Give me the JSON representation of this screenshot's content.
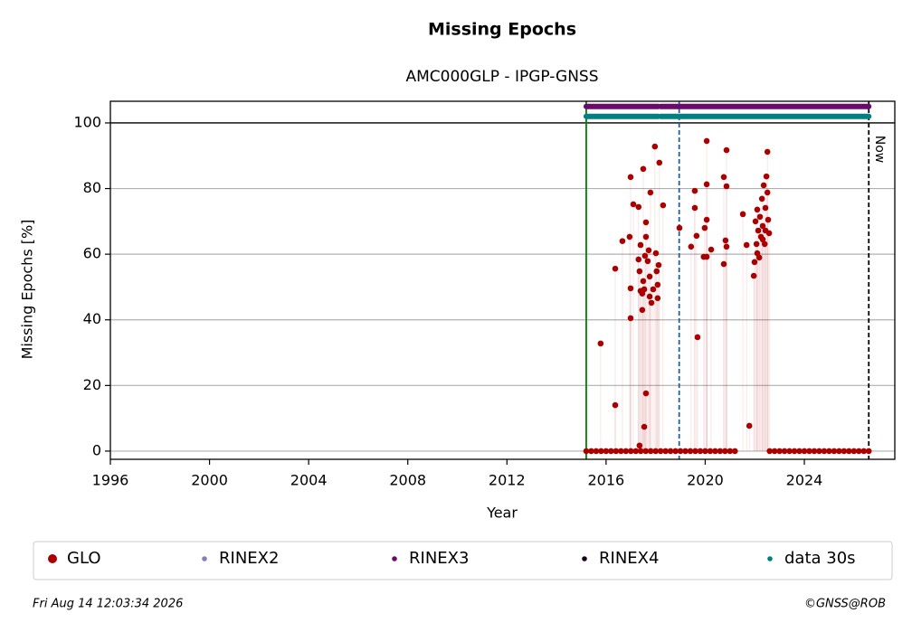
{
  "chart_data": {
    "type": "scatter",
    "title": "Missing Epochs",
    "subtitle": "AMC000GLP - IPGP-GNSS",
    "xlabel": "Year",
    "ylabel": "Missing Epochs [%]",
    "xlim": [
      1996,
      2027.65
    ],
    "ylim": [
      -2.5,
      106.6
    ],
    "xticks": [
      1996,
      2000,
      2004,
      2008,
      2012,
      2016,
      2020,
      2024
    ],
    "yticks": [
      0,
      20,
      40,
      60,
      80,
      100
    ],
    "grid": "y",
    "hline": 100,
    "vlines": [
      {
        "x": 2015.2,
        "color": "#008000",
        "dash": false
      },
      {
        "x": 2018.95,
        "color": "#1f5fa0",
        "dash": true
      },
      {
        "x": 2026.6,
        "color": "#000000",
        "dash": true,
        "label": "Now"
      }
    ],
    "legend": "bottom",
    "series": [
      {
        "name": "GLO",
        "color": "#aa0000",
        "mode": "markers",
        "x": [
          2015.78,
          2016.37,
          2016.37,
          2016.66,
          2016.95,
          2016.99,
          2016.99,
          2016.99,
          2017.1,
          2017.31,
          2017.31,
          2017.35,
          2017.39,
          2017.46,
          2017.46,
          2017.5,
          2017.5,
          2017.54,
          2017.57,
          2017.61,
          2017.61,
          2017.61,
          2017.68,
          2017.72,
          2017.76,
          2017.76,
          2017.79,
          2017.83,
          2017.9,
          2017.97,
          2018.01,
          2018.04,
          2018.08,
          2018.08,
          2018.12,
          2018.15,
          2018.3,
          2017.35,
          2017.54,
          2017.39,
          2018.96,
          2019.43,
          2019.58,
          2019.58,
          2019.65,
          2019.69,
          2019.94,
          2020.06,
          2020.06,
          2020.06,
          2020.06,
          2020.24,
          2019.98,
          2020.75,
          2020.75,
          2020.86,
          2020.86,
          2020.82,
          2020.86,
          2021.52,
          2021.67,
          2021.78,
          2021.96,
          2021.99,
          2022.03,
          2022.07,
          2022.1,
          2022.14,
          2022.18,
          2022.21,
          2022.25,
          2022.29,
          2022.32,
          2022.36,
          2022.4,
          2022.43,
          2022.47,
          2022.51,
          2022.51,
          2022.54,
          2022.58,
          2022.43,
          2022.32,
          2022.1,
          2015.2,
          2015.4,
          2015.6,
          2015.8,
          2016.0,
          2016.2,
          2016.4,
          2016.6,
          2016.8,
          2017.0,
          2017.2,
          2017.4,
          2017.6,
          2017.8,
          2018.0,
          2018.2,
          2018.4,
          2018.6,
          2018.8,
          2019.0,
          2019.2,
          2019.4,
          2019.6,
          2019.8,
          2020.0,
          2020.2,
          2020.4,
          2020.6,
          2020.8,
          2021.0,
          2021.2,
          2022.6,
          2022.8,
          2023.0,
          2023.2,
          2023.4,
          2023.6,
          2023.8,
          2024.0,
          2024.2,
          2024.4,
          2024.6,
          2024.8,
          2025.0,
          2025.2,
          2025.4,
          2025.6,
          2025.8,
          2026.0,
          2026.2,
          2026.4,
          2026.6
        ],
        "values": [
          32.8,
          55.6,
          14,
          64,
          65.3,
          83.5,
          49.6,
          40.5,
          75.2,
          74.4,
          58.4,
          54.8,
          48.8,
          43,
          48,
          86,
          51.8,
          7.4,
          59.5,
          17.6,
          69.7,
          65.3,
          57.9,
          61.2,
          53.2,
          47.1,
          78.8,
          45.2,
          49.3,
          92.8,
          60.3,
          54.8,
          50.7,
          46.6,
          56.7,
          87.9,
          74.9,
          1.7,
          49.3,
          62.8,
          68,
          62.3,
          79.3,
          74.1,
          65.6,
          34.7,
          59.2,
          94.5,
          81.3,
          70.5,
          59.2,
          61.4,
          68,
          57,
          83.5,
          80.7,
          91.7,
          64.2,
          62.3,
          72.2,
          62.8,
          7.7,
          53.4,
          57.6,
          70,
          63.1,
          73.6,
          67.2,
          59,
          71.4,
          65.3,
          76.9,
          68.6,
          81,
          63.1,
          74.1,
          83.7,
          91.2,
          78.8,
          70.5,
          66.4,
          67.2,
          64.5,
          60.3,
          0,
          0,
          0,
          0,
          0,
          0,
          0,
          0,
          0,
          0,
          0,
          0,
          0,
          0,
          0,
          0,
          0,
          0,
          0,
          0,
          0,
          0,
          0,
          0,
          0,
          0,
          0,
          0,
          0,
          0,
          0,
          0,
          0,
          0,
          0,
          0,
          0,
          0,
          0,
          0,
          0,
          0,
          0,
          0,
          0,
          0,
          0,
          0,
          0,
          0,
          0,
          0
        ]
      },
      {
        "name": "RINEX2",
        "color": "#8080c0",
        "mode": "markers",
        "x": [],
        "values": []
      },
      {
        "name": "RINEX3",
        "color": "#6a0a6a",
        "mode": "line",
        "x": [
          2015.2,
          2018.1,
          2018.15,
          2018.2,
          2026.6
        ],
        "values": [
          105,
          105,
          null,
          105,
          105
        ]
      },
      {
        "name": "RINEX4",
        "color": "#1a0020",
        "mode": "markers",
        "x": [],
        "values": []
      },
      {
        "name": "data 30s",
        "color": "#008080",
        "mode": "line",
        "x": [
          2015.2,
          2018.1,
          2018.15,
          2018.2,
          2026.6
        ],
        "values": [
          102,
          102,
          null,
          102,
          102
        ]
      }
    ],
    "footer_left": "Fri Aug 14 12:03:34 2026",
    "footer_right": "©GNSS@ROB"
  }
}
